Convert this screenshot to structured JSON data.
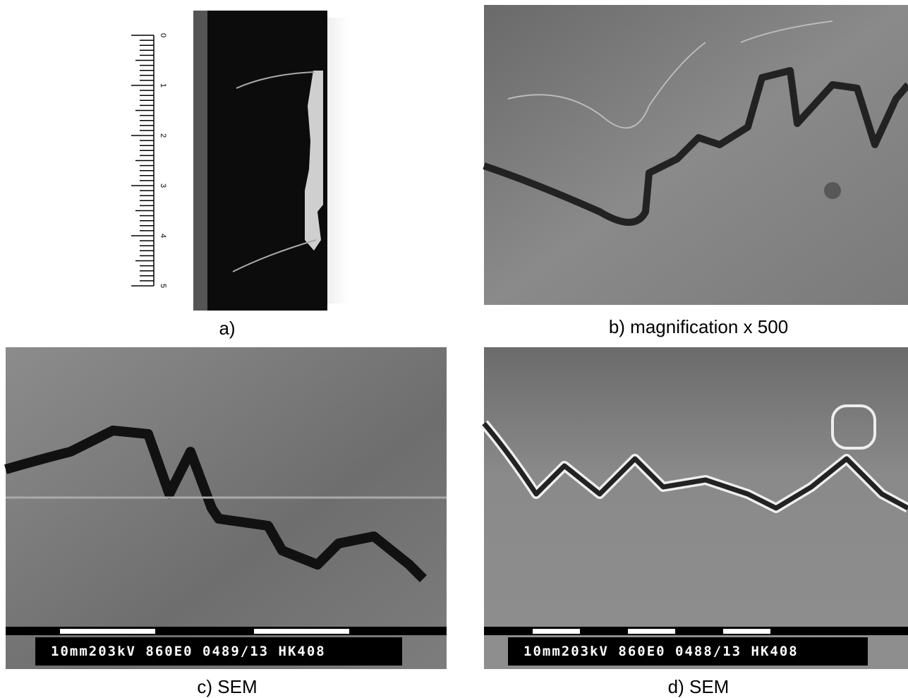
{
  "panels": [
    {
      "caption": "a)",
      "ruler_labels": [
        0,
        1,
        2,
        3,
        4,
        5
      ]
    },
    {
      "caption": "b) magnification x 500"
    },
    {
      "caption": "c) SEM",
      "databar": "10mm203kV 860E0 0489/13 HK408"
    },
    {
      "caption": "d) SEM",
      "databar": "10mm203kV 860E0 0488/13 HK408"
    }
  ]
}
